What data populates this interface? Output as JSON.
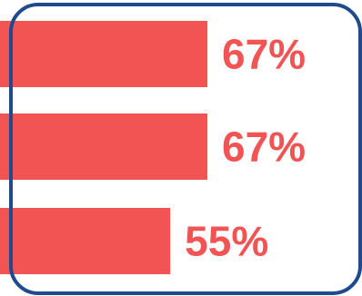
{
  "colors": {
    "bar": "#f25454",
    "label": "#f25454",
    "frame": "#1f4a8c",
    "background": "#ffffff"
  },
  "chart_data": {
    "type": "bar",
    "orientation": "horizontal",
    "categories": [
      "",
      "",
      ""
    ],
    "values": [
      67,
      67,
      55
    ],
    "value_labels": [
      "67%",
      "67%",
      "55%"
    ],
    "xlim": [
      0,
      100
    ],
    "grid": false,
    "legend": "none"
  }
}
